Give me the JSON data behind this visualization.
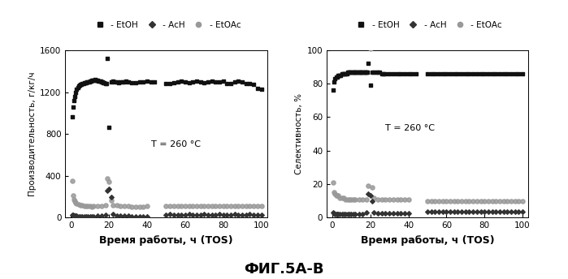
{
  "left_ylabel": "Производительность, г/кг/ч",
  "right_ylabel": "Селективность, %",
  "xlabel": "Время работы, ч (TOS)",
  "caption": "ФИГ.5А-В",
  "annotation": "T = 260 °C",
  "left_ylim": [
    0,
    1600
  ],
  "right_ylim": [
    0,
    100
  ],
  "xlim": [
    -3,
    103
  ],
  "left_yticks": [
    0,
    400,
    800,
    1200,
    1600
  ],
  "right_yticks": [
    0,
    20,
    40,
    60,
    80,
    100
  ],
  "xticks": [
    0,
    20,
    40,
    60,
    80,
    100
  ],
  "EtOH_color": "#111111",
  "AcH_color": "#333333",
  "EtOAc_color": "#999999",
  "left_EtOH_x": [
    0.5,
    1,
    1.5,
    2,
    2.5,
    3,
    3.5,
    4,
    4.5,
    5,
    5.5,
    6,
    6.5,
    7,
    7.5,
    8,
    8.5,
    9,
    9.5,
    10,
    10.5,
    11,
    11.5,
    12,
    12.5,
    13,
    13.5,
    14,
    14.5,
    15,
    15.5,
    16,
    16.5,
    17,
    17.5,
    18,
    18.5,
    19,
    20,
    21,
    22,
    23,
    24,
    25,
    26,
    27,
    28,
    29,
    30,
    32,
    34,
    36,
    38,
    40,
    42,
    44,
    50,
    52,
    54,
    56,
    58,
    60,
    62,
    64,
    66,
    68,
    70,
    72,
    74,
    76,
    78,
    80,
    82,
    84,
    86,
    88,
    90,
    92,
    94,
    96,
    98,
    100
  ],
  "left_EtOH_y": [
    960,
    1060,
    1120,
    1160,
    1200,
    1230,
    1245,
    1255,
    1265,
    1270,
    1275,
    1280,
    1285,
    1288,
    1290,
    1292,
    1295,
    1298,
    1300,
    1305,
    1308,
    1310,
    1312,
    1315,
    1318,
    1315,
    1312,
    1310,
    1308,
    1305,
    1302,
    1298,
    1295,
    1292,
    1288,
    1285,
    1282,
    1520,
    860,
    1300,
    1305,
    1300,
    1295,
    1292,
    1295,
    1298,
    1300,
    1302,
    1295,
    1290,
    1292,
    1295,
    1298,
    1302,
    1298,
    1295,
    1280,
    1285,
    1292,
    1298,
    1302,
    1295,
    1290,
    1298,
    1302,
    1295,
    1290,
    1298,
    1305,
    1295,
    1298,
    1302,
    1278,
    1285,
    1298,
    1308,
    1295,
    1285,
    1278,
    1272,
    1238,
    1225
  ],
  "left_AcH_x": [
    0.5,
    1,
    1.5,
    2,
    2.5,
    3,
    4,
    5,
    6,
    7,
    8,
    9,
    10,
    11,
    12,
    14,
    16,
    18,
    19,
    20,
    21,
    22,
    24,
    26,
    28,
    30,
    32,
    34,
    36,
    38,
    40,
    50,
    52,
    54,
    56,
    58,
    60,
    62,
    64,
    66,
    68,
    70,
    72,
    74,
    76,
    78,
    80,
    82,
    84,
    86,
    88,
    90,
    92,
    94,
    96,
    98,
    100
  ],
  "left_AcH_y": [
    28,
    22,
    20,
    18,
    16,
    15,
    14,
    13,
    12,
    12,
    12,
    12,
    13,
    13,
    14,
    15,
    18,
    28,
    255,
    270,
    195,
    32,
    20,
    18,
    16,
    15,
    14,
    14,
    14,
    13,
    13,
    28,
    32,
    28,
    26,
    26,
    28,
    30,
    28,
    26,
    28,
    30,
    28,
    26,
    28,
    30,
    28,
    26,
    28,
    30,
    28,
    26,
    28,
    30,
    28,
    26,
    28
  ],
  "left_EtOAc_x": [
    0.5,
    1,
    1.5,
    2,
    2.5,
    3,
    4,
    5,
    6,
    7,
    8,
    9,
    10,
    11,
    12,
    14,
    16,
    18,
    19,
    20,
    21,
    22,
    24,
    26,
    28,
    30,
    32,
    34,
    36,
    38,
    40,
    50,
    52,
    54,
    56,
    58,
    60,
    62,
    64,
    66,
    68,
    70,
    72,
    74,
    76,
    78,
    80,
    82,
    84,
    86,
    88,
    90,
    92,
    94,
    96,
    98,
    100
  ],
  "left_EtOAc_y": [
    355,
    215,
    175,
    155,
    142,
    135,
    128,
    122,
    118,
    114,
    112,
    110,
    108,
    106,
    108,
    110,
    112,
    118,
    375,
    345,
    162,
    118,
    115,
    112,
    110,
    108,
    106,
    105,
    106,
    107,
    108,
    112,
    114,
    112,
    110,
    108,
    112,
    114,
    112,
    110,
    112,
    114,
    112,
    110,
    112,
    114,
    112,
    110,
    112,
    114,
    112,
    110,
    112,
    114,
    112,
    110,
    112
  ],
  "right_EtOH_x": [
    0.5,
    1,
    1.5,
    2,
    2.5,
    3,
    3.5,
    4,
    4.5,
    5,
    5.5,
    6,
    6.5,
    7,
    7.5,
    8,
    8.5,
    9,
    9.5,
    10,
    10.5,
    11,
    11.5,
    12,
    12.5,
    13,
    13.5,
    14,
    14.5,
    15,
    15.5,
    16,
    16.5,
    17,
    17.5,
    18,
    18.5,
    19,
    20,
    21,
    22,
    23,
    24,
    25,
    26,
    27,
    28,
    30,
    32,
    34,
    36,
    38,
    40,
    42,
    44,
    50,
    52,
    54,
    56,
    58,
    60,
    62,
    64,
    66,
    68,
    70,
    72,
    74,
    76,
    78,
    80,
    82,
    84,
    86,
    88,
    90,
    92,
    94,
    96,
    98,
    100
  ],
  "right_EtOH_y": [
    76,
    81,
    83,
    84,
    84,
    85,
    85,
    85,
    85,
    86,
    86,
    86,
    86,
    86,
    86,
    87,
    87,
    87,
    87,
    87,
    87,
    87,
    87,
    87,
    87,
    87,
    87,
    87,
    87,
    87,
    87,
    87,
    87,
    87,
    87,
    87,
    87,
    92,
    79,
    87,
    87,
    87,
    87,
    87,
    86,
    86,
    86,
    86,
    86,
    86,
    86,
    86,
    86,
    86,
    86,
    86,
    86,
    86,
    86,
    86,
    86,
    86,
    86,
    86,
    86,
    86,
    86,
    86,
    86,
    86,
    86,
    86,
    86,
    86,
    86,
    86,
    86,
    86,
    86,
    86,
    86
  ],
  "right_AcH_x": [
    0.5,
    1,
    1.5,
    2,
    2.5,
    3,
    4,
    5,
    6,
    7,
    8,
    9,
    10,
    11,
    12,
    14,
    16,
    18,
    19,
    20,
    21,
    22,
    24,
    26,
    28,
    30,
    32,
    34,
    36,
    38,
    40,
    50,
    52,
    54,
    56,
    58,
    60,
    62,
    64,
    66,
    68,
    70,
    72,
    74,
    76,
    78,
    80,
    82,
    84,
    86,
    88,
    90,
    92,
    94,
    96,
    98,
    100
  ],
  "right_AcH_y": [
    3,
    2.5,
    2.2,
    2,
    2,
    2,
    2,
    2,
    2,
    2,
    2,
    2,
    2,
    2,
    2,
    2,
    2,
    3,
    14,
    13,
    10,
    3,
    2.5,
    2.5,
    2.5,
    2.5,
    2.5,
    2.5,
    2.5,
    2.5,
    2.5,
    3.5,
    3.5,
    3.5,
    3.5,
    3.5,
    3.5,
    3.5,
    3.5,
    3.5,
    3.5,
    3.5,
    3.5,
    3.5,
    3.5,
    3.5,
    3.5,
    3.5,
    3.5,
    3.5,
    3.5,
    3.5,
    3.5,
    3.5,
    3.5,
    3.5,
    3.5
  ],
  "right_EtOAc_x": [
    0.5,
    1,
    1.5,
    2,
    2.5,
    3,
    4,
    5,
    6,
    7,
    8,
    9,
    10,
    11,
    12,
    14,
    16,
    18,
    19,
    20,
    21,
    22,
    24,
    26,
    28,
    30,
    32,
    34,
    36,
    38,
    40,
    50,
    52,
    54,
    56,
    58,
    60,
    62,
    64,
    66,
    68,
    70,
    72,
    74,
    76,
    78,
    80,
    82,
    84,
    86,
    88,
    90,
    92,
    94,
    96,
    98,
    100
  ],
  "right_EtOAc_y": [
    21,
    15,
    14,
    13,
    13,
    13,
    12,
    12,
    12,
    11,
    11,
    11,
    11,
    11,
    11,
    11,
    11,
    11,
    19,
    101,
    18,
    12,
    11,
    11,
    11,
    11,
    11,
    11,
    11,
    11,
    11,
    10,
    10,
    10,
    10,
    10,
    10,
    10,
    10,
    10,
    10,
    10,
    10,
    10,
    10,
    10,
    10,
    10,
    10,
    10,
    10,
    10,
    10,
    10,
    10,
    10,
    10
  ],
  "legend_labels": [
    "EtOH",
    "AcH",
    "EtOAc"
  ],
  "legend_markers": [
    "s",
    "D",
    "o"
  ],
  "legend_colors": [
    "#111111",
    "#333333",
    "#999999"
  ]
}
